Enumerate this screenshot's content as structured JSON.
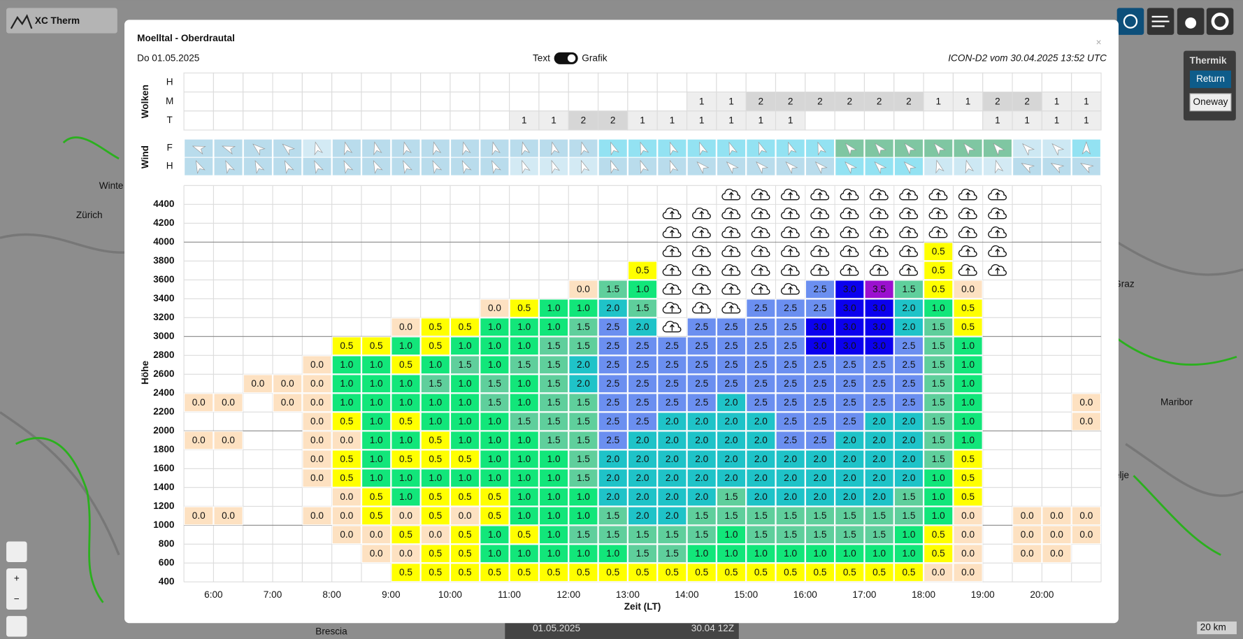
{
  "app": {
    "logo": "XC Therm",
    "panel_title": "Thermik",
    "return": "Return",
    "oneway": "Oneway",
    "zoom_in": "+",
    "zoom_out": "−",
    "bottom_date": "01.05.2025",
    "bottom_run": "30.04 12Z",
    "scale": "20 km",
    "map_labels": [
      "Winte",
      "Zürich",
      "Graz",
      "Maribor",
      "Celje",
      "Brescia"
    ]
  },
  "modal": {
    "title": "Moelltal - Oberdrautal",
    "date": "Do 01.05.2025",
    "toggle_left": "Text",
    "toggle_right": "Grafik",
    "model": "ICON-D2 vom 30.04.2025 13:52 UTC",
    "close": "×",
    "wolken": {
      "label": "Wolken",
      "colors": {
        "1": "#eeeeee",
        "2": "#d6d6d6"
      },
      "rows": [
        {
          "label": "H",
          "cells": [
            null,
            null,
            null,
            null,
            null,
            null,
            null,
            null,
            null,
            null,
            null,
            null,
            null,
            null,
            null,
            null,
            null,
            null,
            null,
            null,
            null,
            null,
            null,
            null,
            null,
            null,
            null,
            null,
            null,
            null,
            null
          ]
        },
        {
          "label": "M",
          "cells": [
            null,
            null,
            null,
            null,
            null,
            null,
            null,
            null,
            null,
            null,
            null,
            null,
            null,
            null,
            null,
            null,
            null,
            "1",
            "1",
            "2",
            "2",
            "2",
            "2",
            "2",
            "2",
            "1",
            "1",
            "2",
            "2",
            "1",
            "1"
          ]
        },
        {
          "label": "T",
          "cells": [
            null,
            null,
            null,
            null,
            null,
            null,
            null,
            null,
            null,
            null,
            null,
            "1",
            "1",
            "2",
            "2",
            "1",
            "1",
            "1",
            "1",
            "1",
            "1",
            null,
            null,
            null,
            null,
            null,
            null,
            "1",
            "1",
            "1",
            "1"
          ]
        }
      ]
    },
    "wind": {
      "label": "Wind",
      "rows": [
        {
          "label": "F",
          "direction": [
            290,
            290,
            310,
            310,
            345,
            345,
            345,
            345,
            345,
            345,
            345,
            345,
            345,
            345,
            340,
            340,
            340,
            340,
            340,
            340,
            340,
            340,
            320,
            320,
            320,
            320,
            320,
            320,
            315,
            315,
            0
          ],
          "colors": [
            "#b9dcec",
            "#b9dcec",
            "#b9dcec",
            "#b9dcec",
            "#d3eaf4",
            "#b9dcec",
            "#b9dcec",
            "#b9dcec",
            "#b9dcec",
            "#b9dcec",
            "#b9dcec",
            "#b9dcec",
            "#b9dcec",
            "#b9dcec",
            "#93e2f2",
            "#93e2f2",
            "#93e2f2",
            "#93e2f2",
            "#93e2f2",
            "#93e2f2",
            "#93e2f2",
            "#93e2f2",
            "#7fc6a2",
            "#7fc6a2",
            "#7fc6a2",
            "#7fc6a2",
            "#7fc6a2",
            "#7fc6a2",
            "#cde8f3",
            "#cde8f3",
            "#93e2f2"
          ]
        },
        {
          "label": "H",
          "direction": [
            335,
            335,
            335,
            335,
            335,
            335,
            335,
            335,
            335,
            335,
            335,
            340,
            340,
            340,
            340,
            340,
            340,
            315,
            315,
            315,
            315,
            315,
            315,
            315,
            315,
            345,
            345,
            345,
            300,
            300,
            300
          ],
          "colors": [
            "#b9dcec",
            "#b9dcec",
            "#b9dcec",
            "#b9dcec",
            "#b9dcec",
            "#b9dcec",
            "#b9dcec",
            "#b9dcec",
            "#b9dcec",
            "#b9dcec",
            "#b9dcec",
            "#d3eaf4",
            "#d3eaf4",
            "#d3eaf4",
            "#b9dcec",
            "#b9dcec",
            "#b9dcec",
            "#b9dcec",
            "#b9dcec",
            "#b9dcec",
            "#b9dcec",
            "#b9dcec",
            "#93e2f2",
            "#93e2f2",
            "#93e2f2",
            "#cde8f3",
            "#cde8f3",
            "#d3eaf4",
            "#b9dcec",
            "#b9dcec",
            "#b9dcec"
          ]
        }
      ]
    },
    "thermik": {
      "y_label": "Höhe",
      "x_label": "Zeit (LT)",
      "altitude_range": [
        400,
        4600
      ],
      "altitudes": [
        400,
        600,
        800,
        1000,
        1200,
        1400,
        1600,
        1800,
        2000,
        2200,
        2400,
        2600,
        2800,
        3000,
        3200,
        3400,
        3600,
        3800,
        4000,
        4200,
        4400
      ],
      "times": [
        "6:00",
        "7:00",
        "8:00",
        "9:00",
        "10:00",
        "11:00",
        "12:00",
        "13:00",
        "14:00",
        "15:00",
        "16:00",
        "17:00",
        "18:00",
        "19:00",
        "20:00"
      ],
      "colors": {
        "0.0": "#fde1c1",
        "0.5": "#ffff00",
        "1.0": "#12e67a",
        "1.5": "#5fcf9c",
        "2.0": "#1fc3c8",
        "2.5": "#6b8ff0",
        "3.0": "#0b00ee",
        "3.5": "#9b10cf"
      },
      "rows": [
        [
          null,
          null,
          null,
          null,
          null,
          null,
          null,
          null,
          null,
          null,
          null,
          null,
          null,
          null,
          null,
          null,
          null,
          null,
          {
            "icon": "cloud"
          },
          {
            "icon": "cloud"
          },
          {
            "icon": "cloud"
          },
          {
            "icon": "cloud"
          },
          {
            "icon": "cloud"
          },
          {
            "icon": "cloud"
          },
          {
            "icon": "cloud"
          },
          {
            "icon": "cloud"
          },
          {
            "icon": "cloud"
          },
          {
            "icon": "cloud"
          },
          null,
          null,
          null
        ],
        [
          null,
          null,
          null,
          null,
          null,
          null,
          null,
          null,
          null,
          null,
          null,
          null,
          null,
          null,
          null,
          null,
          {
            "icon": "cloud"
          },
          {
            "icon": "cloud"
          },
          {
            "icon": "cloud"
          },
          {
            "icon": "cloud"
          },
          {
            "icon": "cloud"
          },
          {
            "icon": "cloud"
          },
          {
            "icon": "cloud"
          },
          {
            "icon": "cloud"
          },
          {
            "icon": "cloud"
          },
          {
            "icon": "cloud"
          },
          {
            "icon": "cloud"
          },
          {
            "icon": "cloud"
          },
          null,
          null,
          null
        ],
        [
          null,
          null,
          null,
          null,
          null,
          null,
          null,
          null,
          null,
          null,
          null,
          null,
          null,
          null,
          null,
          null,
          {
            "icon": "cloud"
          },
          {
            "icon": "cloud"
          },
          {
            "icon": "cloud"
          },
          {
            "icon": "cloud"
          },
          {
            "icon": "cloud"
          },
          {
            "icon": "cloud"
          },
          {
            "icon": "cloud"
          },
          {
            "icon": "cloud"
          },
          {
            "icon": "cloud"
          },
          {
            "icon": "cloud"
          },
          {
            "icon": "cloud"
          },
          {
            "icon": "cloud"
          },
          null,
          null,
          null
        ],
        [
          null,
          null,
          null,
          null,
          null,
          null,
          null,
          null,
          null,
          null,
          null,
          null,
          null,
          null,
          null,
          null,
          {
            "icon": "cloud"
          },
          {
            "icon": "cloud"
          },
          {
            "icon": "cloud"
          },
          {
            "icon": "cloud"
          },
          {
            "icon": "cloud"
          },
          {
            "icon": "cloud"
          },
          {
            "icon": "cloud"
          },
          {
            "icon": "cloud"
          },
          {
            "icon": "cloud"
          },
          "0.5",
          {
            "icon": "cloud"
          },
          {
            "icon": "cloud"
          },
          null,
          null,
          null
        ],
        [
          null,
          null,
          null,
          null,
          null,
          null,
          null,
          null,
          null,
          null,
          null,
          null,
          null,
          null,
          null,
          "0.5",
          {
            "icon": "cloud"
          },
          {
            "icon": "cloud"
          },
          {
            "icon": "cloud"
          },
          {
            "icon": "cloud"
          },
          {
            "icon": "cloud"
          },
          {
            "icon": "cloud"
          },
          {
            "icon": "cloud"
          },
          {
            "icon": "cloud"
          },
          {
            "icon": "cloud"
          },
          "0.5",
          {
            "icon": "cloud"
          },
          {
            "icon": "cloud"
          },
          null,
          null,
          null
        ],
        [
          null,
          null,
          null,
          null,
          null,
          null,
          null,
          null,
          null,
          null,
          null,
          null,
          null,
          "0.0",
          "1.5",
          "1.0",
          {
            "icon": "cloud"
          },
          {
            "icon": "cloud"
          },
          {
            "icon": "cloud"
          },
          {
            "icon": "cloud"
          },
          {
            "icon": "cloud"
          },
          "2.5",
          "3.0",
          "3.5",
          "1.5",
          "0.5",
          "0.0",
          null,
          null,
          null,
          null
        ],
        [
          null,
          null,
          null,
          null,
          null,
          null,
          null,
          null,
          null,
          null,
          "0.0",
          "0.5",
          "1.0",
          "1.0",
          "2.0",
          "1.5",
          {
            "icon": "cloud"
          },
          {
            "icon": "cloud"
          },
          {
            "icon": "cloud"
          },
          "2.5",
          "2.5",
          "2.5",
          "3.0",
          "3.0",
          "2.0",
          "1.0",
          "0.5",
          null,
          null,
          null,
          null
        ],
        [
          null,
          null,
          null,
          null,
          null,
          null,
          null,
          "0.0",
          "0.5",
          "0.5",
          "1.0",
          "1.0",
          "1.0",
          "1.5",
          "2.5",
          "2.0",
          {
            "icon": "cloud"
          },
          "2.5",
          "2.5",
          "2.5",
          "2.5",
          "3.0",
          "3.0",
          "3.0",
          "2.0",
          "1.5",
          "0.5",
          null,
          null,
          null,
          null
        ],
        [
          null,
          null,
          null,
          null,
          null,
          "0.5",
          "0.5",
          "1.0",
          "0.5",
          "1.0",
          "1.0",
          "1.0",
          "1.5",
          "1.5",
          "2.5",
          "2.5",
          "2.5",
          "2.5",
          "2.5",
          "2.5",
          "2.5",
          "3.0",
          "3.0",
          "3.0",
          "2.5",
          "1.5",
          "1.0",
          null,
          null,
          null,
          null
        ],
        [
          null,
          null,
          null,
          null,
          "0.0",
          "1.0",
          "1.0",
          "0.5",
          "1.0",
          "1.5",
          "1.0",
          "1.5",
          "1.5",
          "2.0",
          "2.5",
          "2.5",
          "2.5",
          "2.5",
          "2.5",
          "2.5",
          "2.5",
          "2.5",
          "2.5",
          "2.5",
          "2.5",
          "1.5",
          "1.0",
          null,
          null,
          null,
          null
        ],
        [
          null,
          null,
          "0.0",
          "0.0",
          "0.0",
          "1.0",
          "1.0",
          "1.0",
          "1.5",
          "1.0",
          "1.5",
          "1.0",
          "1.5",
          "2.0",
          "2.5",
          "2.5",
          "2.5",
          "2.5",
          "2.5",
          "2.5",
          "2.5",
          "2.5",
          "2.5",
          "2.5",
          "2.5",
          "1.5",
          "1.0",
          null,
          null,
          null,
          null
        ],
        [
          "0.0",
          "0.0",
          null,
          "0.0",
          "0.0",
          "1.0",
          "1.0",
          "1.0",
          "1.0",
          "1.0",
          "1.5",
          "1.0",
          "1.5",
          "1.5",
          "2.5",
          "2.5",
          "2.5",
          "2.5",
          "2.0",
          "2.5",
          "2.5",
          "2.5",
          "2.5",
          "2.5",
          "2.5",
          "1.5",
          "1.0",
          null,
          null,
          null,
          "0.0"
        ],
        [
          null,
          null,
          null,
          null,
          "0.0",
          "0.5",
          "1.0",
          "0.5",
          "1.0",
          "1.0",
          "1.0",
          "1.5",
          "1.5",
          "1.5",
          "2.5",
          "2.5",
          "2.0",
          "2.0",
          "2.0",
          "2.0",
          "2.5",
          "2.5",
          "2.5",
          "2.0",
          "2.0",
          "1.5",
          "1.0",
          null,
          null,
          null,
          "0.0"
        ],
        [
          "0.0",
          "0.0",
          null,
          null,
          "0.0",
          "0.0",
          "1.0",
          "1.0",
          "0.5",
          "1.0",
          "1.0",
          "1.0",
          "1.5",
          "1.5",
          "2.5",
          "2.0",
          "2.0",
          "2.0",
          "2.0",
          "2.0",
          "2.5",
          "2.5",
          "2.0",
          "2.0",
          "2.0",
          "1.5",
          "1.0",
          null,
          null,
          null,
          null
        ],
        [
          null,
          null,
          null,
          null,
          "0.0",
          "0.5",
          "1.0",
          "0.5",
          "0.5",
          "0.5",
          "1.0",
          "1.0",
          "1.0",
          "1.5",
          "2.0",
          "2.0",
          "2.0",
          "2.0",
          "2.0",
          "2.0",
          "2.0",
          "2.0",
          "2.0",
          "2.0",
          "2.0",
          "1.5",
          "0.5",
          null,
          null,
          null,
          null
        ],
        [
          null,
          null,
          null,
          null,
          "0.0",
          "0.5",
          "1.0",
          "1.0",
          "1.0",
          "1.0",
          "1.0",
          "1.0",
          "1.0",
          "1.5",
          "2.0",
          "2.0",
          "2.0",
          "2.0",
          "2.0",
          "2.0",
          "2.0",
          "2.0",
          "2.0",
          "2.0",
          "2.0",
          "1.0",
          "0.5",
          null,
          null,
          null,
          null
        ],
        [
          null,
          null,
          null,
          null,
          null,
          "0.0",
          "0.5",
          "1.0",
          "0.5",
          "0.5",
          "0.5",
          "1.0",
          "1.0",
          "1.0",
          "2.0",
          "2.0",
          "2.0",
          "2.0",
          "1.5",
          "2.0",
          "2.0",
          "2.0",
          "2.0",
          "2.0",
          "1.5",
          "1.0",
          "0.5",
          null,
          null,
          null,
          null
        ],
        [
          "0.0",
          "0.0",
          null,
          null,
          "0.0",
          "0.0",
          "0.5",
          "0.0",
          "0.5",
          "0.0",
          "0.5",
          "1.0",
          "1.0",
          "1.0",
          "1.5",
          "2.0",
          "2.0",
          "1.5",
          "1.5",
          "1.5",
          "1.5",
          "1.5",
          "1.5",
          "1.5",
          "1.5",
          "1.0",
          "0.0",
          null,
          "0.0",
          "0.0",
          "0.0"
        ],
        [
          null,
          null,
          null,
          null,
          null,
          "0.0",
          "0.0",
          "0.5",
          "0.0",
          "0.5",
          "1.0",
          "0.5",
          "1.0",
          "1.5",
          "1.5",
          "1.5",
          "1.5",
          "1.5",
          "1.0",
          "1.5",
          "1.5",
          "1.5",
          "1.5",
          "1.5",
          "1.0",
          "0.5",
          "0.0",
          null,
          "0.0",
          "0.0",
          "0.0"
        ],
        [
          null,
          null,
          null,
          null,
          null,
          null,
          "0.0",
          "0.0",
          "0.5",
          "0.5",
          "1.0",
          "1.0",
          "1.0",
          "1.0",
          "1.0",
          "1.5",
          "1.5",
          "1.0",
          "1.0",
          "1.0",
          "1.0",
          "1.0",
          "1.0",
          "1.0",
          "1.0",
          "0.5",
          "0.0",
          null,
          "0.0",
          "0.0",
          null
        ],
        [
          null,
          null,
          null,
          null,
          null,
          null,
          null,
          "0.5",
          "0.5",
          "0.5",
          "0.5",
          "0.5",
          "0.5",
          "0.5",
          "0.5",
          "0.5",
          "0.5",
          "0.5",
          "0.5",
          "0.5",
          "0.5",
          "0.5",
          "0.5",
          "0.5",
          "0.5",
          "0.0",
          "0.0",
          null,
          null,
          null,
          null
        ]
      ]
    }
  }
}
